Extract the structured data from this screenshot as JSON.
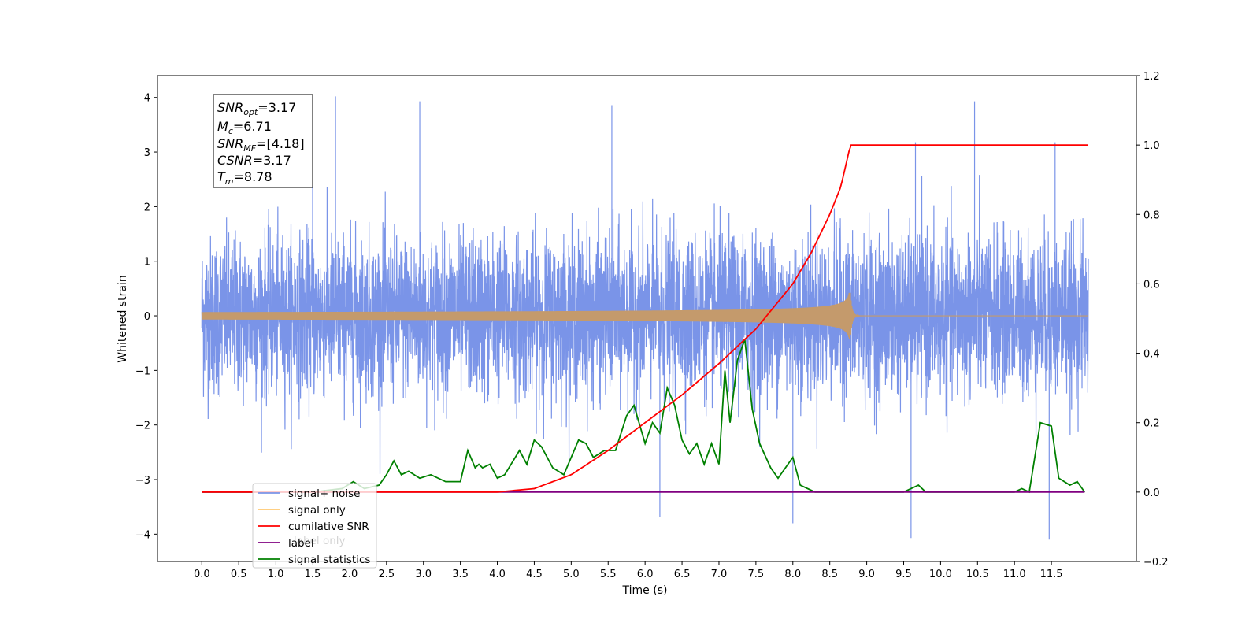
{
  "chart_data": {
    "type": "line",
    "title": "",
    "xlabel": "Time (s)",
    "ylabel": "Whitened strain",
    "y2label": "",
    "xlim": [
      -0.6,
      12.65
    ],
    "ylim": [
      -4.5,
      4.4
    ],
    "y2lim": [
      -0.2,
      1.2
    ],
    "x_ticks": [
      0.0,
      0.5,
      1.0,
      1.5,
      2.0,
      2.5,
      3.0,
      3.5,
      4.0,
      4.5,
      5.0,
      5.5,
      6.0,
      6.5,
      7.0,
      7.5,
      8.0,
      8.5,
      9.0,
      9.5,
      10.0,
      10.5,
      11.0,
      11.5
    ],
    "x_tick_labels": [
      "0.0",
      "0.5",
      "1.0",
      "1.5",
      "2.0",
      "2.5",
      "3.0",
      "3.5",
      "4.0",
      "4.5",
      "5.0",
      "5.5",
      "6.0",
      "6.5",
      "7.0",
      "7.5",
      "8.0",
      "8.5",
      "9.0",
      "9.5",
      "10.0",
      "10.5",
      "11.0",
      "11.5"
    ],
    "y_ticks": [
      4,
      3,
      2,
      1,
      0,
      -1,
      -2,
      -3,
      -4
    ],
    "y_tick_labels": [
      "4",
      "3",
      "2",
      "1",
      "0",
      "−1",
      "−2",
      "−3",
      "−4"
    ],
    "y2_ticks": [
      1.2,
      1.0,
      0.8,
      0.6,
      0.4,
      0.2,
      0.0,
      -0.2
    ],
    "y2_tick_labels": [
      "1.2",
      "1.0",
      "0.8",
      "0.6",
      "0.4",
      "0.2",
      "0.0",
      "−0.2"
    ],
    "grid": false,
    "legend_position": "bottom-left",
    "legend": [
      {
        "label": "signal+ noise",
        "color": "#7a94e8"
      },
      {
        "label": "signal only",
        "color": "#ffc871"
      },
      {
        "label": "cumilative SNR",
        "color": "#ff0000"
      },
      {
        "label": "label",
        "color": "#800080"
      },
      {
        "label": "signal statistics",
        "color": "#008000"
      }
    ],
    "hidden_legend_text": "label only",
    "info_box": [
      {
        "base": "SNR",
        "sub": "opt",
        "rest": "=3.17"
      },
      {
        "base": "M",
        "sub": "c",
        "rest": "=6.71"
      },
      {
        "base": "SNR",
        "sub": "MF",
        "rest": "=[4.18]"
      },
      {
        "base": "CSNR",
        "sub": "",
        "rest": "=3.17"
      },
      {
        "base": "T",
        "sub": "m",
        "rest": "=8.78"
      }
    ],
    "series": [
      {
        "name": "signal+ noise",
        "axis": "left",
        "color": "#7a94e8",
        "x_range": [
          0.0,
          12.0
        ],
        "noise_sigma": 0.72,
        "note_peaks": [
          {
            "x": 1.81,
            "y": 4.02
          },
          {
            "x": 1.5,
            "y": 3.86
          },
          {
            "x": 2.95,
            "y": 3.93
          },
          {
            "x": 10.46,
            "y": 3.93
          },
          {
            "x": 9.66,
            "y": 3.18
          },
          {
            "x": 5.55,
            "y": 3.86
          },
          {
            "x": 11.55,
            "y": 3.18
          },
          {
            "x": 9.6,
            "y": -4.07
          },
          {
            "x": 11.47,
            "y": -4.1
          },
          {
            "x": 8.0,
            "y": -3.8
          },
          {
            "x": 6.2,
            "y": -3.68
          }
        ]
      },
      {
        "name": "signal only",
        "axis": "left",
        "color": "#c49a6c",
        "x_range": [
          0.0,
          12.0
        ],
        "merger_time": 8.78,
        "peak_amplitude": 0.42
      },
      {
        "name": "cumilative SNR",
        "axis": "right",
        "color": "#ff0000",
        "x": [
          0.0,
          3.5,
          4.0,
          4.5,
          5.0,
          5.5,
          6.0,
          6.5,
          7.0,
          7.5,
          8.0,
          8.25,
          8.5,
          8.65,
          8.78,
          12.0
        ],
        "values": [
          0.0,
          0.0,
          0.0,
          0.01,
          0.05,
          0.12,
          0.2,
          0.28,
          0.37,
          0.47,
          0.6,
          0.69,
          0.8,
          0.88,
          1.0,
          1.0
        ]
      },
      {
        "name": "label",
        "axis": "right",
        "color": "#800080",
        "x": [
          0.0,
          11.95
        ],
        "values": [
          0.0,
          0.0
        ]
      },
      {
        "name": "signal statistics",
        "axis": "right",
        "color": "#008000",
        "x": [
          0.0,
          1.0,
          1.5,
          1.9,
          2.05,
          2.2,
          2.4,
          2.5,
          2.6,
          2.7,
          2.8,
          2.95,
          3.1,
          3.3,
          3.5,
          3.6,
          3.7,
          3.75,
          3.8,
          3.9,
          4.0,
          4.1,
          4.3,
          4.4,
          4.5,
          4.6,
          4.75,
          4.9,
          5.1,
          5.2,
          5.3,
          5.45,
          5.6,
          5.75,
          5.85,
          6.0,
          6.1,
          6.2,
          6.3,
          6.4,
          6.5,
          6.6,
          6.7,
          6.8,
          6.9,
          7.0,
          7.08,
          7.15,
          7.25,
          7.35,
          7.45,
          7.55,
          7.7,
          7.8,
          7.9,
          8.0,
          8.1,
          8.3,
          9.0,
          9.5,
          9.6,
          9.7,
          9.8,
          10.0,
          11.0,
          11.1,
          11.2,
          11.35,
          11.5,
          11.6,
          11.75,
          11.85,
          11.95
        ],
        "values": [
          0.0,
          0.0,
          0.0,
          0.01,
          0.03,
          0.01,
          0.02,
          0.05,
          0.09,
          0.05,
          0.06,
          0.04,
          0.05,
          0.03,
          0.03,
          0.12,
          0.07,
          0.08,
          0.07,
          0.08,
          0.04,
          0.05,
          0.12,
          0.08,
          0.15,
          0.13,
          0.07,
          0.05,
          0.15,
          0.14,
          0.1,
          0.12,
          0.12,
          0.22,
          0.25,
          0.14,
          0.2,
          0.17,
          0.3,
          0.25,
          0.15,
          0.11,
          0.14,
          0.08,
          0.14,
          0.08,
          0.35,
          0.2,
          0.38,
          0.44,
          0.24,
          0.14,
          0.07,
          0.04,
          0.07,
          0.1,
          0.02,
          0.0,
          0.0,
          0.0,
          0.01,
          0.02,
          0.0,
          0.0,
          0.0,
          0.01,
          0.0,
          0.2,
          0.19,
          0.04,
          0.02,
          0.03,
          0.0
        ]
      }
    ]
  }
}
